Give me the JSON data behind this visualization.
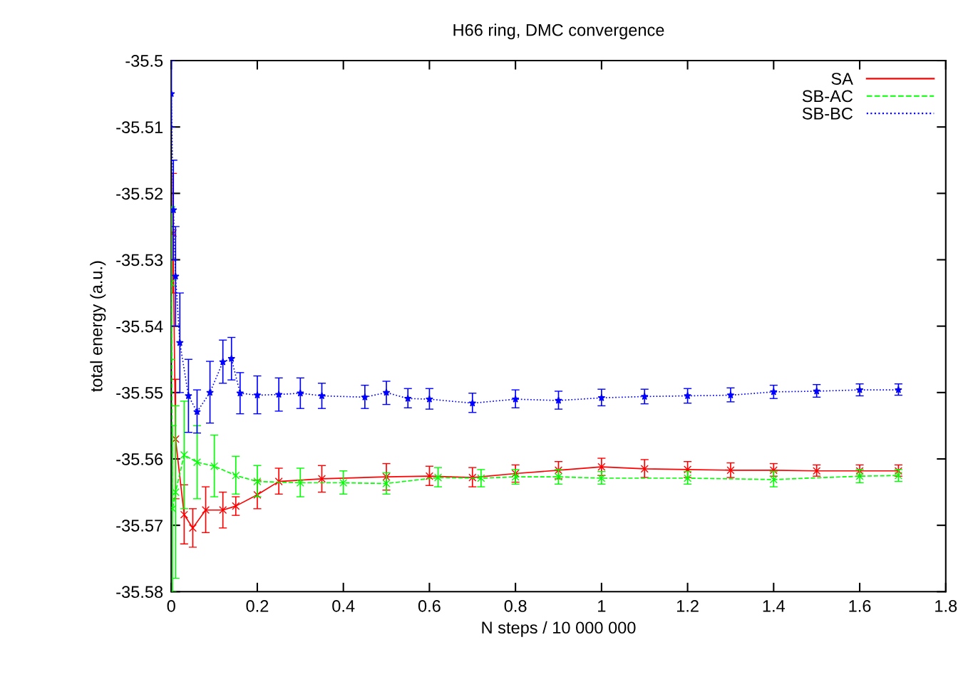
{
  "chart_data": {
    "type": "line",
    "title": "H66 ring, DMC convergence",
    "xlabel": "N steps / 10 000 000",
    "ylabel": "total energy (a.u.)",
    "xlim": [
      0,
      1.8
    ],
    "xticks": [
      0,
      0.2,
      0.4,
      0.6,
      0.8,
      1,
      1.2,
      1.4,
      1.6,
      1.8
    ],
    "ylim": [
      -35.58,
      -35.5
    ],
    "yticks": [
      -35.58,
      -35.57,
      -35.56,
      -35.55,
      -35.54,
      -35.53,
      -35.52,
      -35.51,
      -35.5
    ],
    "grid": false,
    "legend": "top right",
    "series": [
      {
        "name": "SA",
        "color": "#ff0000",
        "line_style": "solid",
        "marker": "cross",
        "x": [
          0.004,
          0.01,
          0.03,
          0.05,
          0.08,
          0.12,
          0.15,
          0.2,
          0.25,
          0.35,
          0.5,
          0.6,
          0.7,
          0.8,
          0.9,
          1.0,
          1.1,
          1.2,
          1.3,
          1.4,
          1.5,
          1.6,
          1.69
        ],
        "values": [
          -35.526,
          -35.557,
          -35.5684,
          -35.5704,
          -35.5677,
          -35.5677,
          -35.5671,
          -35.5654,
          -35.5634,
          -35.563,
          -35.5627,
          -35.5626,
          -35.5628,
          -35.5622,
          -35.5617,
          -35.5612,
          -35.5615,
          -35.5616,
          -35.5617,
          -35.5617,
          -35.5618,
          -35.5618,
          -35.5618
        ],
        "errors": [
          [
            -35.535,
            -35.517
          ],
          [
            -35.566,
            -35.548
          ],
          [
            -35.5728,
            -35.5639
          ],
          [
            -35.5733,
            -35.5675
          ],
          [
            -35.5711,
            -35.5642
          ],
          [
            -35.5704,
            -35.565
          ],
          [
            -35.5685,
            -35.5657
          ],
          [
            -35.5675,
            -35.5632
          ],
          [
            -35.5653,
            -35.5614
          ],
          [
            -35.565,
            -35.561
          ],
          [
            -35.5647,
            -35.5607
          ],
          [
            -35.564,
            -35.5611
          ],
          [
            -35.5642,
            -35.5613
          ],
          [
            -35.5635,
            -35.5609
          ],
          [
            -35.563,
            -35.5604
          ],
          [
            -35.5625,
            -35.5599
          ],
          [
            -35.5628,
            -35.5601
          ],
          [
            -35.5628,
            -35.5604
          ],
          [
            -35.5628,
            -35.5606
          ],
          [
            -35.5626,
            -35.5607
          ],
          [
            -35.5626,
            -35.5609
          ],
          [
            -35.5626,
            -35.5609
          ],
          [
            -35.5626,
            -35.5609
          ]
        ]
      },
      {
        "name": "SB-AC",
        "color": "#00ff00",
        "line_style": "dashed",
        "marker": "cross",
        "x": [
          0,
          0.003,
          0.01,
          0.03,
          0.06,
          0.1,
          0.15,
          0.2,
          0.3,
          0.4,
          0.5,
          0.62,
          0.72,
          0.8,
          0.9,
          1.0,
          1.2,
          1.4,
          1.6,
          1.69
        ],
        "values": [
          -35.5335,
          -35.5675,
          -35.565,
          -35.5594,
          -35.5605,
          -35.5611,
          -35.5625,
          -35.5634,
          -35.5636,
          -35.5636,
          -35.5637,
          -35.5628,
          -35.5629,
          -35.5627,
          -35.5627,
          -35.5629,
          -35.5629,
          -35.5631,
          -35.5626,
          -35.5625
        ],
        "errors": [
          [
            -35.545,
            -35.522
          ],
          [
            -35.58,
            -35.555
          ],
          [
            -35.578,
            -35.552
          ],
          [
            -35.5675,
            -35.5513
          ],
          [
            -35.566,
            -35.555
          ],
          [
            -35.5657,
            -35.5564
          ],
          [
            -35.5653,
            -35.5596
          ],
          [
            -35.5657,
            -35.561
          ],
          [
            -35.5657,
            -35.5614
          ],
          [
            -35.5653,
            -35.5618
          ],
          [
            -35.5653,
            -35.5621
          ],
          [
            -35.5642,
            -35.5613
          ],
          [
            -35.5642,
            -35.5616
          ],
          [
            -35.5638,
            -35.5616
          ],
          [
            -35.5638,
            -35.5616
          ],
          [
            -35.5638,
            -35.5619
          ],
          [
            -35.5638,
            -35.5619
          ],
          [
            -35.5642,
            -35.5619
          ],
          [
            -35.5636,
            -35.5616
          ],
          [
            -35.5634,
            -35.5616
          ]
        ]
      },
      {
        "name": "SB-BC",
        "color": "#0000ff",
        "line_style": "dotted",
        "marker": "star",
        "x": [
          0,
          0.005,
          0.01,
          0.02,
          0.04,
          0.06,
          0.09,
          0.12,
          0.14,
          0.16,
          0.2,
          0.25,
          0.3,
          0.35,
          0.45,
          0.5,
          0.55,
          0.6,
          0.7,
          0.8,
          0.9,
          1.0,
          1.1,
          1.2,
          1.3,
          1.4,
          1.5,
          1.6,
          1.69
        ],
        "values": [
          -35.505,
          -35.5225,
          -35.5325,
          -35.5425,
          -35.5505,
          -35.5529,
          -35.55,
          -35.5454,
          -35.5449,
          -35.5501,
          -35.5504,
          -35.5503,
          -35.5501,
          -35.5505,
          -35.5507,
          -35.55,
          -35.5509,
          -35.551,
          -35.5516,
          -35.551,
          -35.5512,
          -35.5508,
          -35.5506,
          -35.5505,
          -35.5504,
          -35.5499,
          -35.5498,
          -35.5496,
          -35.5496
        ],
        "errors": [
          [
            -35.51,
            -35.5
          ],
          [
            -35.53,
            -35.515
          ],
          [
            -35.54,
            -35.525
          ],
          [
            -35.55,
            -35.535
          ],
          [
            -35.556,
            -35.545
          ],
          [
            -35.5561,
            -35.5496
          ],
          [
            -35.5546,
            -35.5453
          ],
          [
            -35.5486,
            -35.5421
          ],
          [
            -35.5481,
            -35.5417
          ],
          [
            -35.5532,
            -35.547
          ],
          [
            -35.5532,
            -35.5475
          ],
          [
            -35.5528,
            -35.5478
          ],
          [
            -35.5524,
            -35.5478
          ],
          [
            -35.5524,
            -35.5486
          ],
          [
            -35.5524,
            -35.5489
          ],
          [
            -35.5518,
            -35.5483
          ],
          [
            -35.5523,
            -35.5494
          ],
          [
            -35.5525,
            -35.5494
          ],
          [
            -35.553,
            -35.5501
          ],
          [
            -35.5523,
            -35.5496
          ],
          [
            -35.5525,
            -35.5498
          ],
          [
            -35.552,
            -35.5495
          ],
          [
            -35.5517,
            -35.5495
          ],
          [
            -35.5516,
            -35.5494
          ],
          [
            -35.5514,
            -35.5493
          ],
          [
            -35.5509,
            -35.5489
          ],
          [
            -35.5507,
            -35.5488
          ],
          [
            -35.5505,
            -35.5487
          ],
          [
            -35.5504,
            -35.5487
          ]
        ]
      }
    ]
  }
}
